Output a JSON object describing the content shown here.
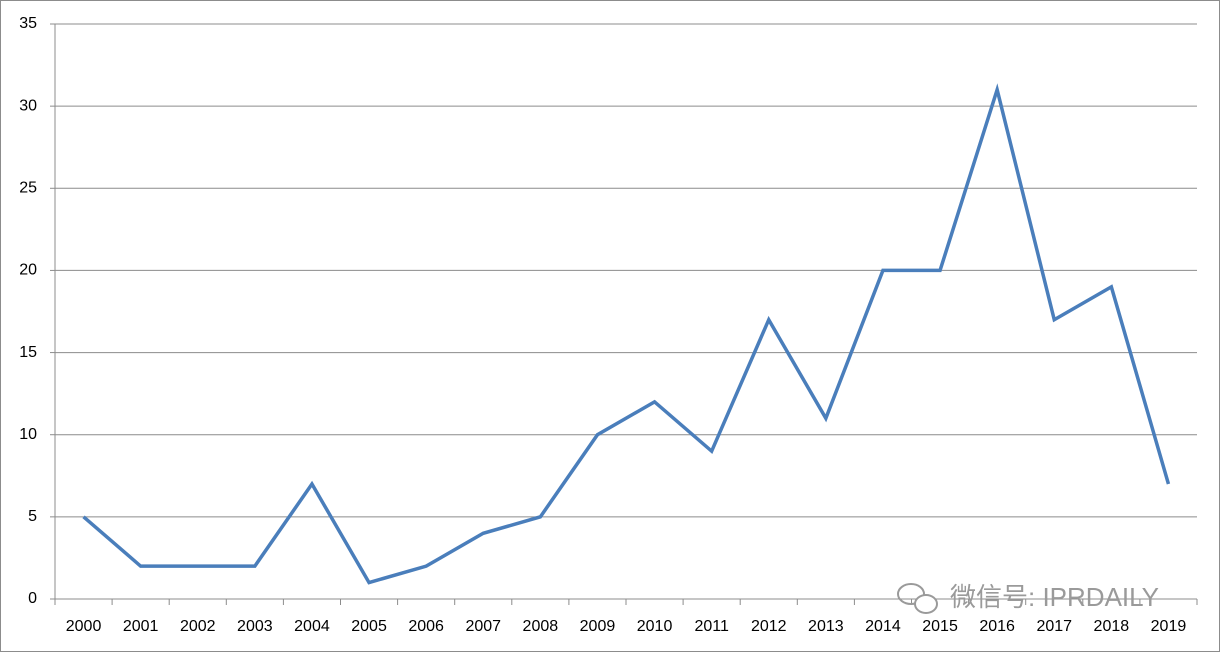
{
  "chart_data": {
    "type": "line",
    "categories": [
      "2000",
      "2001",
      "2002",
      "2003",
      "2004",
      "2005",
      "2006",
      "2007",
      "2008",
      "2009",
      "2010",
      "2011",
      "2012",
      "2013",
      "2014",
      "2015",
      "2016",
      "2017",
      "2018",
      "2019"
    ],
    "series": [
      {
        "color": "#4a7ebb",
        "values": [
          5,
          2,
          2,
          2,
          7,
          1,
          2,
          4,
          5,
          10,
          12,
          9,
          17,
          11,
          20,
          20,
          31,
          17,
          19,
          7
        ]
      }
    ],
    "ylim": [
      0,
      35
    ],
    "yticks": [
      0,
      5,
      10,
      15,
      20,
      25,
      30,
      35
    ],
    "grid": true,
    "watermark": "微信号: IPRDAILY"
  }
}
